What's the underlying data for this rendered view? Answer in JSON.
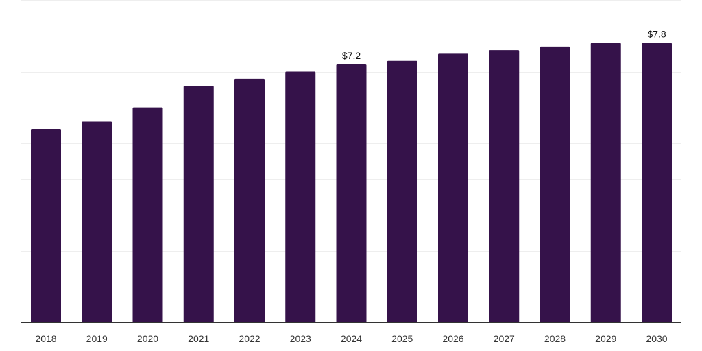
{
  "colors": {
    "bar": "#35124a",
    "grid": "#eeeeee",
    "axis": "#333333",
    "text": "#333333"
  },
  "chart_data": {
    "type": "bar",
    "title": "",
    "xlabel": "",
    "ylabel": "",
    "categories": [
      "2018",
      "2019",
      "2020",
      "2021",
      "2022",
      "2023",
      "2024",
      "2025",
      "2026",
      "2027",
      "2028",
      "2029",
      "2030"
    ],
    "values": [
      5.4,
      5.6,
      6.0,
      6.6,
      6.8,
      7.0,
      7.2,
      7.3,
      7.5,
      7.6,
      7.7,
      7.8,
      7.8
    ],
    "ylim": [
      0,
      9.0
    ],
    "grid": true,
    "legend": "none",
    "data_labels": [
      {
        "category": "2024",
        "text": "$7.2"
      },
      {
        "category": "2030",
        "text": "$7.8"
      }
    ]
  }
}
